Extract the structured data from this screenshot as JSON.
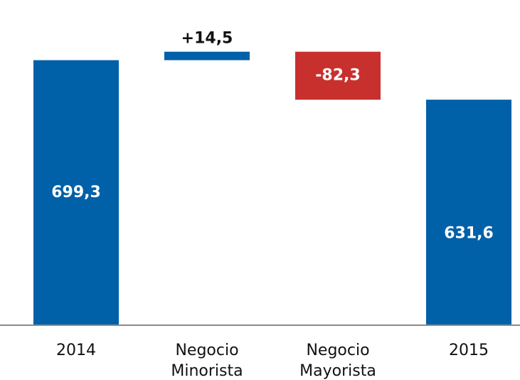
{
  "chart_data": {
    "type": "waterfall",
    "categories": [
      "2014",
      "Negocio Minorista",
      "Negocio Mayorista",
      "2015"
    ],
    "values": [
      699.3,
      14.5,
      -82.3,
      631.6
    ],
    "value_labels": [
      "699,3",
      "+14,5",
      "-82,3",
      "631,6"
    ],
    "measure": [
      "absolute",
      "relative",
      "relative",
      "total"
    ],
    "total_color": "#0060a8",
    "increasing_color": "#0060a8",
    "decreasing_color": "#c8302e",
    "ylim": [
      245,
      800
    ]
  }
}
